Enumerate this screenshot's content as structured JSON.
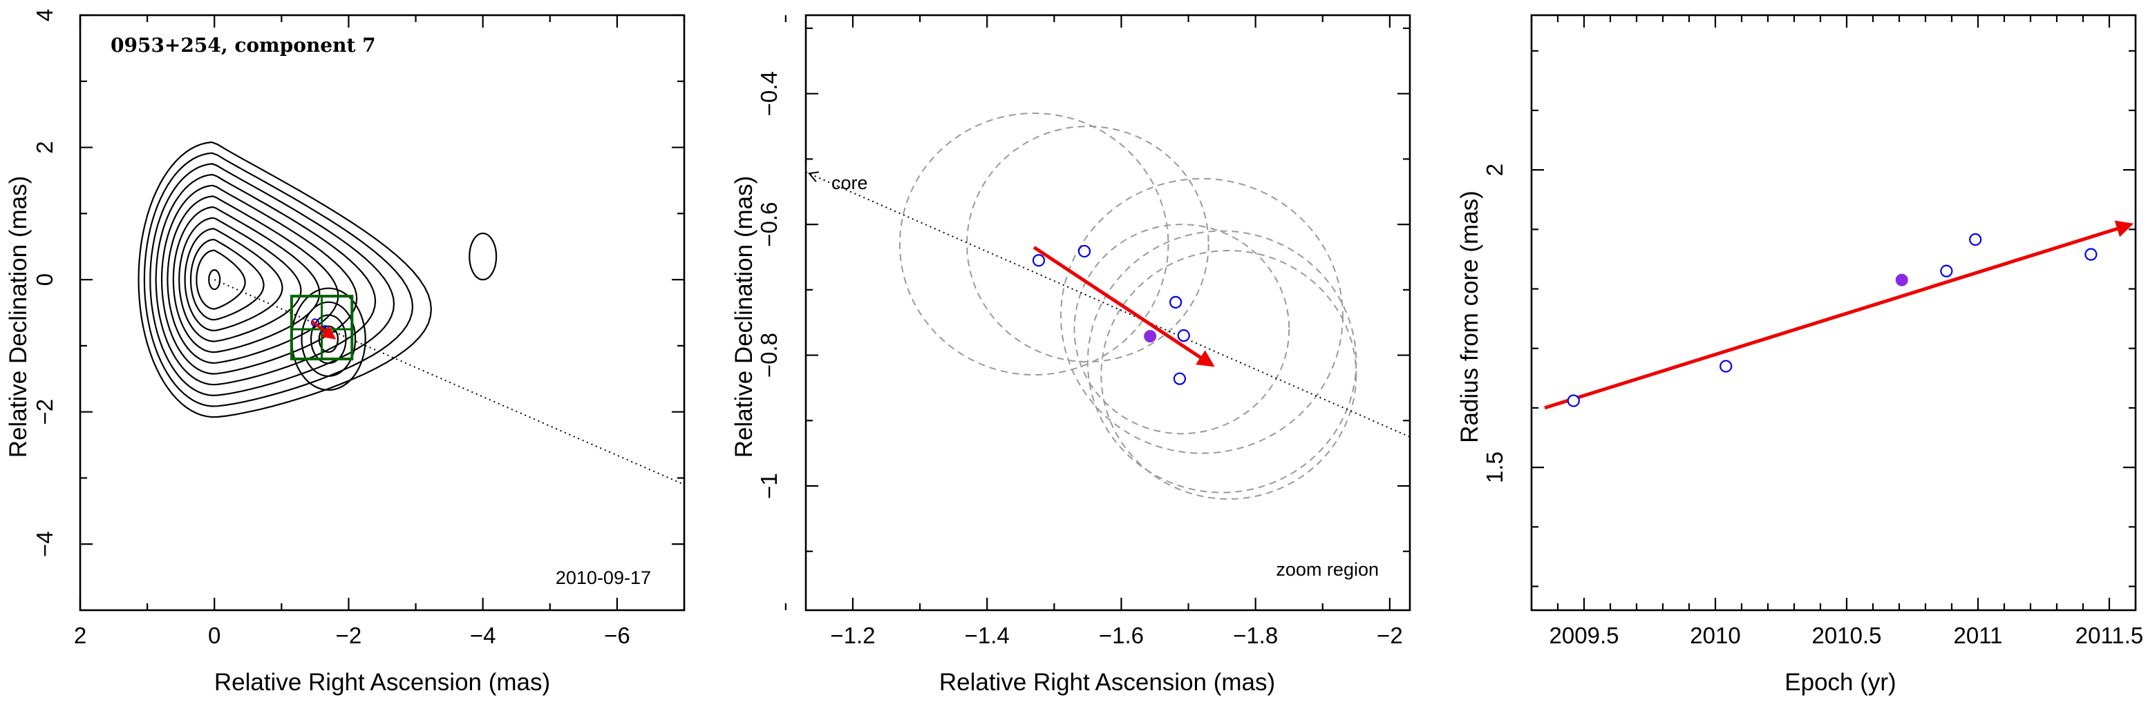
{
  "colors": {
    "open_point": "#0000ee",
    "filled_point": "#8a2be2",
    "arrow": "#ee0000",
    "circle": "#9a9a9a",
    "box": "#006400",
    "contour": "#000000"
  },
  "chart_data": [
    {
      "type": "contour",
      "title": "0953+254, component 7",
      "date_label": "2010-09-17",
      "xlabel": "Relative Right Ascension (mas)",
      "ylabel": "Relative Declination (mas)",
      "xlim": [
        2,
        -7
      ],
      "ylim": [
        -5,
        4
      ],
      "xticks": [
        2,
        0,
        -2,
        -4,
        -6
      ],
      "xtick_labels": [
        "2",
        "0",
        "−2",
        "−4",
        "−6"
      ],
      "yticks": [
        -4,
        -2,
        0,
        2,
        4
      ],
      "ytick_labels": [
        "−4",
        "−2",
        "0",
        "2",
        "4"
      ],
      "core_line": [
        [
          0,
          0
        ],
        [
          -7,
          -3.1
        ]
      ],
      "zoom_box": {
        "x": [
          -1.15,
          -2.05
        ],
        "y": [
          -0.25,
          -1.2
        ],
        "divider_x": -1.6,
        "divider_y": -0.75
      },
      "contour_levels": 12,
      "points": [
        {
          "x": -1.5,
          "y": -0.65
        },
        {
          "x": -1.65,
          "y": -0.75
        }
      ],
      "arrow": {
        "from": [
          -1.45,
          -0.63
        ],
        "to": [
          -1.78,
          -0.88
        ]
      }
    },
    {
      "type": "scatter",
      "xlabel": "Relative Right Ascension (mas)",
      "ylabel": "Relative Declination (mas)",
      "annotation_core": "core",
      "annotation_zoom": "zoom region",
      "xlim": [
        -1.13,
        -2.03
      ],
      "ylim": [
        -1.19,
        -0.28
      ],
      "xticks": [
        -1.2,
        -1.4,
        -1.6,
        -1.8,
        -2
      ],
      "xtick_labels": [
        "−1.2",
        "−1.4",
        "−1.6",
        "−1.8",
        "−2"
      ],
      "yticks": [
        -1,
        -0.8,
        -0.6,
        -0.4
      ],
      "ytick_labels": [
        "−1",
        "−0.8",
        "−0.6",
        "−0.4"
      ],
      "points_open": [
        {
          "x": -1.477,
          "y": -0.655
        },
        {
          "x": -1.545,
          "y": -0.641
        },
        {
          "x": -1.681,
          "y": -0.719
        },
        {
          "x": -1.693,
          "y": -0.77
        },
        {
          "x": -1.687,
          "y": -0.836
        }
      ],
      "points_filled": [
        {
          "x": -1.643,
          "y": -0.771
        }
      ],
      "arrow": {
        "from": [
          -1.47,
          -0.635
        ],
        "to": [
          -1.735,
          -0.815
        ]
      },
      "core_line": [
        [
          -1.13,
          -0.52
        ],
        [
          -2.03,
          -0.925
        ]
      ],
      "circles": [
        {
          "cx": -1.47,
          "cy": -0.63,
          "r": 0.2
        },
        {
          "cx": -1.55,
          "cy": -0.63,
          "r": 0.18
        },
        {
          "cx": -1.72,
          "cy": -0.74,
          "r": 0.21
        },
        {
          "cx": -1.75,
          "cy": -0.81,
          "r": 0.2
        },
        {
          "cx": -1.69,
          "cy": -0.76,
          "r": 0.16
        },
        {
          "cx": -1.76,
          "cy": -0.83,
          "r": 0.19
        }
      ]
    },
    {
      "type": "scatter",
      "xlabel": "Epoch (yr)",
      "ylabel": "Radius from core (mas)",
      "xlim": [
        2009.3,
        2011.6
      ],
      "ylim": [
        1.26,
        2.26
      ],
      "xticks": [
        2009.5,
        2010,
        2010.5,
        2011,
        2011.5
      ],
      "xtick_labels": [
        "2009.5",
        "2010",
        "2010.5",
        "2011",
        "2011.5"
      ],
      "yticks": [
        1.5,
        2
      ],
      "ytick_labels": [
        "1.5",
        "2"
      ],
      "points_open": [
        {
          "x": 2009.46,
          "y": 1.612
        },
        {
          "x": 2010.04,
          "y": 1.67
        },
        {
          "x": 2010.88,
          "y": 1.83
        },
        {
          "x": 2010.99,
          "y": 1.883
        },
        {
          "x": 2011.43,
          "y": 1.858
        }
      ],
      "points_filled": [
        {
          "x": 2010.71,
          "y": 1.815
        }
      ],
      "trend_arrow": {
        "from": [
          2009.35,
          1.6
        ],
        "to": [
          2011.58,
          1.908
        ]
      }
    }
  ]
}
